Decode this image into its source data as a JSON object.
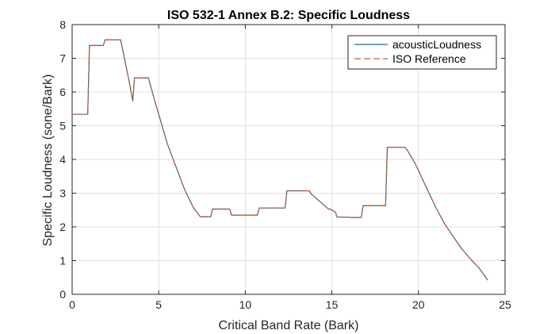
{
  "chart_data": {
    "type": "line",
    "title": "ISO 532-1 Annex B.2: Specific Loudness",
    "xlabel": "Critical Band Rate (Bark)",
    "ylabel": "Specific Loudness (sone/Bark)",
    "xlim": [
      0,
      25
    ],
    "ylim": [
      0,
      8
    ],
    "xticks": [
      0,
      5,
      10,
      15,
      20,
      25
    ],
    "yticks": [
      0,
      1,
      2,
      3,
      4,
      5,
      6,
      7,
      8
    ],
    "grid": true,
    "legend_position": "top-right",
    "series": [
      {
        "name": "acousticLoudness",
        "color": "#0072BD",
        "style": "solid",
        "x": [
          0,
          0.9,
          1.0,
          1.8,
          1.9,
          2.8,
          3.3,
          3.5,
          3.6,
          4.4,
          4.8,
          5.5,
          6.0,
          6.5,
          7.0,
          7.4,
          7.5,
          8.0,
          8.1,
          9.1,
          9.2,
          10.7,
          10.8,
          12.3,
          12.4,
          13.7,
          13.8,
          14.8,
          14.9,
          15.2,
          15.3,
          15.9,
          16.1,
          16.7,
          16.8,
          18.0,
          18.1,
          18.2,
          19.2,
          19.3,
          19.8,
          20.5,
          21.0,
          21.5,
          22.0,
          22.5,
          23.0,
          23.5,
          24.0
        ],
        "values": [
          5.34,
          5.34,
          7.38,
          7.38,
          7.55,
          7.55,
          6.3,
          5.73,
          6.42,
          6.42,
          5.69,
          4.46,
          3.78,
          3.1,
          2.57,
          2.3,
          2.3,
          2.3,
          2.53,
          2.53,
          2.35,
          2.35,
          2.56,
          2.56,
          3.07,
          3.07,
          2.98,
          2.53,
          2.53,
          2.44,
          2.29,
          2.29,
          2.28,
          2.28,
          2.63,
          2.63,
          2.63,
          4.36,
          4.36,
          4.32,
          3.89,
          3.12,
          2.58,
          2.1,
          1.72,
          1.35,
          1.05,
          0.78,
          0.42
        ]
      },
      {
        "name": "ISO Reference",
        "color": "#D95319",
        "style": "dashed",
        "x": [
          0,
          0.9,
          1.0,
          1.8,
          1.9,
          2.8,
          3.3,
          3.5,
          3.6,
          4.4,
          4.8,
          5.5,
          6.0,
          6.5,
          7.0,
          7.4,
          7.5,
          8.0,
          8.1,
          9.1,
          9.2,
          10.7,
          10.8,
          12.3,
          12.4,
          13.7,
          13.8,
          14.8,
          14.9,
          15.2,
          15.3,
          15.9,
          16.1,
          16.7,
          16.8,
          18.0,
          18.1,
          18.2,
          19.2,
          19.3,
          19.8,
          20.5,
          21.0,
          21.5,
          22.0,
          22.5,
          23.0,
          23.5,
          24.0
        ],
        "values": [
          5.34,
          5.34,
          7.38,
          7.38,
          7.55,
          7.55,
          6.3,
          5.73,
          6.42,
          6.42,
          5.69,
          4.46,
          3.78,
          3.1,
          2.57,
          2.3,
          2.3,
          2.3,
          2.53,
          2.53,
          2.35,
          2.35,
          2.56,
          2.56,
          3.07,
          3.07,
          2.98,
          2.53,
          2.53,
          2.44,
          2.29,
          2.29,
          2.28,
          2.28,
          2.63,
          2.63,
          2.63,
          4.36,
          4.36,
          4.32,
          3.89,
          3.12,
          2.58,
          2.1,
          1.72,
          1.35,
          1.05,
          0.78,
          0.42
        ]
      }
    ]
  }
}
